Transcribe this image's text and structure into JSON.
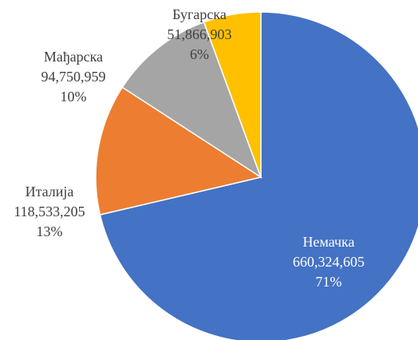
{
  "chart_data": {
    "type": "pie",
    "categories": [
      "Немачка",
      "Италија",
      "Мађарска",
      "Бугарска"
    ],
    "values": [
      660324605,
      118533205,
      94750959,
      51866903
    ],
    "value_labels": [
      "660,324,605",
      "118,533,205",
      "94,750,959",
      "51,866,903"
    ],
    "percent_values": [
      71,
      13,
      10,
      6
    ],
    "percent_labels": [
      "71%",
      "13%",
      "10%",
      "6%"
    ],
    "colors": [
      "#4472c4",
      "#ed7d31",
      "#a5a5a5",
      "#ffc000"
    ]
  }
}
